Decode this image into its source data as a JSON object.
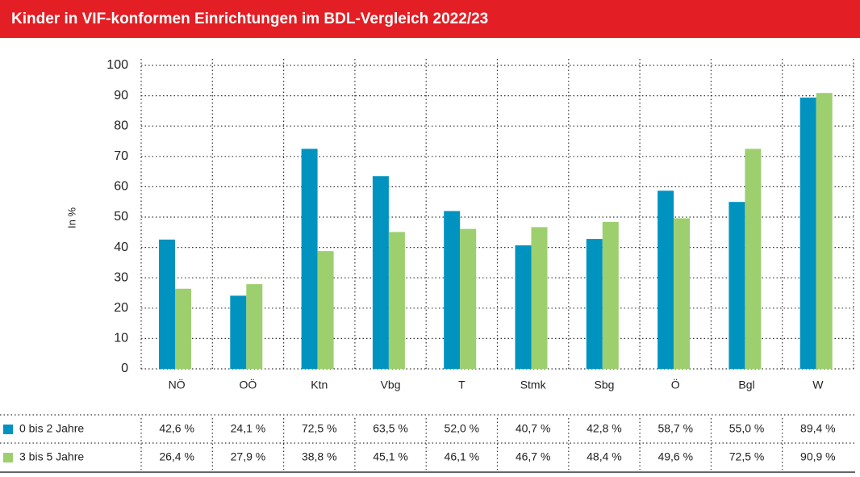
{
  "chart_data": {
    "type": "bar",
    "title": "Kinder in VIF-konformen Einrichtungen im BDL-Vergleich 2022/23",
    "ylabel": "In %",
    "categories": [
      "NÖ",
      "OÖ",
      "Ktn",
      "Vbg",
      "T",
      "Stmk",
      "Sbg",
      "Ö",
      "Bgl",
      "W"
    ],
    "series": [
      {
        "name": "0 bis 2 Jahre",
        "color": "#0093c0",
        "values": [
          42.6,
          24.1,
          72.5,
          63.5,
          52.0,
          40.7,
          42.8,
          58.7,
          55.0,
          89.4
        ],
        "value_labels": [
          "42,6 %",
          "24,1 %",
          "72,5 %",
          "63,5 %",
          "52,0 %",
          "40,7 %",
          "42,8 %",
          "58,7 %",
          "55,0 %",
          "89,4 %"
        ]
      },
      {
        "name": "3 bis 5 Jahre",
        "color": "#9dcf6f",
        "values": [
          26.4,
          27.9,
          38.8,
          45.1,
          46.1,
          46.7,
          48.4,
          49.6,
          72.5,
          90.9
        ],
        "value_labels": [
          "26,4 %",
          "27,9 %",
          "38,8 %",
          "45,1 %",
          "46,1 %",
          "46,7 %",
          "48,4 %",
          "49,6 %",
          "72,5 %",
          "90,9 %"
        ]
      }
    ],
    "ylim": [
      0,
      100
    ],
    "yticks": [
      0,
      10,
      20,
      30,
      40,
      50,
      60,
      70,
      80,
      90,
      100
    ],
    "grid": true
  }
}
